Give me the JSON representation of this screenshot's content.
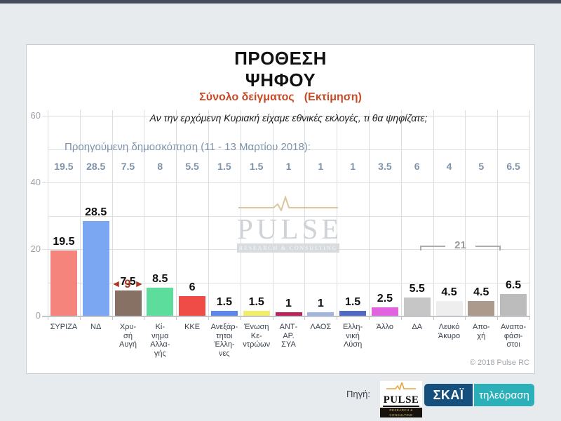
{
  "window": {
    "topbar_color": "#454E58",
    "background": "#E7EBEE"
  },
  "chart_data": {
    "type": "bar",
    "title_lines": [
      "ΠΡΟΘΕΣΗ",
      "ΨΗΦΟΥ"
    ],
    "subtitle": "Σύνολο δείγματος",
    "subtitle_note": "(Εκτίμηση)",
    "question": "Αν την ερχόμενη Κυριακή είχαμε εθνικές εκλογές, τι θα ψηφίζατε;",
    "previous_poll_label": "Προηγούμενη δημοσκόπηση (11 - 13 Μαρτίου 2018):",
    "categories": [
      "ΣΥΡΙΖΑ",
      "ΝΔ",
      "Χρυσή Αυγή",
      "Κίνημα Αλλαγής",
      "ΚΚΕ",
      "Ανεξάρτητοι Έλληνες",
      "Ένωση Κεντρώων",
      "ΑΝΤ-ΑΡ.ΣΥΑ",
      "ΛΑΟΣ",
      "Ελληνική Λύση",
      "Άλλο",
      "ΔΑ",
      "Λευκό Άκυρο",
      "Αποχή",
      "Αναποφάσιστοι"
    ],
    "category_label_lines": [
      [
        "ΣΥΡΙΖΑ"
      ],
      [
        "ΝΔ"
      ],
      [
        "Χρυ-",
        "σή",
        "Αυγή"
      ],
      [
        "Κί-",
        "νημα",
        "Αλλα-",
        "γής"
      ],
      [
        "ΚΚΕ"
      ],
      [
        "Ανεξάρ-",
        "τητοι",
        "Έλλη-",
        "νες"
      ],
      [
        "Ένωση",
        "Κε-",
        "ντρώων"
      ],
      [
        "ΑΝΤ-",
        "ΑΡ.",
        "ΣΥΑ"
      ],
      [
        "ΛΑΟΣ"
      ],
      [
        "Ελλη-",
        "νική",
        "Λύση"
      ],
      [
        "Άλλο"
      ],
      [
        "ΔΑ"
      ],
      [
        "Λευκό",
        "Άκυρο"
      ],
      [
        "Απο-",
        "χή"
      ],
      [
        "Αναπο-",
        "φάσι-",
        "στοι"
      ]
    ],
    "series": [
      {
        "name": "Εκτίμηση",
        "values": [
          19.5,
          28.5,
          7.5,
          8.5,
          6,
          1.5,
          1.5,
          1,
          1,
          1.5,
          2.5,
          5.5,
          4.5,
          4.5,
          6.5
        ]
      },
      {
        "name": "Προηγούμενη δημοσκόπηση (11 - 13 Μαρτίου 2018)",
        "values": [
          19.5,
          28.5,
          7.5,
          8,
          5.5,
          1.5,
          1.5,
          1,
          1,
          1,
          3.5,
          6,
          4,
          5,
          6.5
        ]
      }
    ],
    "bar_colors": [
      "#F4847C",
      "#7BA6F2",
      "#877064",
      "#5CDD9C",
      "#EF4B47",
      "#5A87E9",
      "#F1EF6A",
      "#BE2059",
      "#9FB4DF",
      "#5069C4",
      "#E263DF",
      "#C6C6C6",
      "#EEEEEE",
      "#AC9A8D",
      "#BCBCBC"
    ],
    "ylim": [
      0,
      60
    ],
    "yticks": [
      0,
      20,
      40,
      60
    ],
    "grid": true,
    "legend": "none",
    "annotations": {
      "difference_first_two": {
        "left_arrow": "◄",
        "text": "9",
        "right_arrow": "►"
      },
      "last_four_sum": {
        "text": "21"
      }
    },
    "watermark": {
      "title": "PULSE",
      "subtitle": "RESEARCH & CONSULTING"
    },
    "copyright": "© 2018 Pulse RC"
  },
  "footer": {
    "source_label": "Πηγή:",
    "pulse_logo": {
      "title": "PULSE",
      "subtitle": "RESEARCH & CONSULTING"
    },
    "skai_logo": {
      "channel": "ΣΚΑΪ",
      "suffix": "τηλεόραση"
    }
  }
}
